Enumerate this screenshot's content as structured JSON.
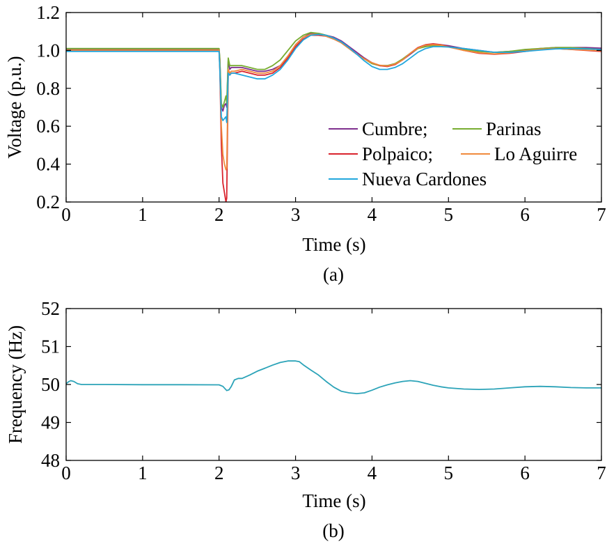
{
  "chart_data": [
    {
      "type": "line",
      "caption": "(a)",
      "xlabel": "Time (s)",
      "ylabel": "Voltage (p.u.)",
      "xlim": [
        0,
        7
      ],
      "ylim": [
        0.2,
        1.2
      ],
      "xticks": [
        "0",
        "1",
        "2",
        "3",
        "4",
        "5",
        "6",
        "7"
      ],
      "yticks": [
        "0.2",
        "0.4",
        "0.6",
        "0.8",
        "1.0",
        "1.2"
      ],
      "grid": false,
      "legend_position": "lower-right",
      "legend": [
        {
          "label": "Cumbre;",
          "color": "#7e2f8e"
        },
        {
          "label": "Parinas",
          "color": "#77ac30"
        },
        {
          "label": "Polpaico;",
          "color": "#d9232d"
        },
        {
          "label": "Lo Aguirre",
          "color": "#f08a3c"
        },
        {
          "label": "Nueva Cardones",
          "color": "#22a7dd"
        }
      ],
      "series": [
        {
          "name": "Cumbre",
          "color": "#7e2f8e",
          "x": [
            0,
            2.0,
            2.01,
            2.03,
            2.05,
            2.07,
            2.09,
            2.1,
            2.12,
            2.14,
            2.16,
            2.2,
            2.3,
            2.4,
            2.5,
            2.6,
            2.7,
            2.8,
            2.9,
            3.0,
            3.1,
            3.2,
            3.3,
            3.4,
            3.5,
            3.6,
            3.7,
            3.8,
            3.9,
            4.0,
            4.1,
            4.2,
            4.3,
            4.4,
            4.5,
            4.6,
            4.7,
            4.8,
            4.9,
            5.0,
            5.2,
            5.4,
            5.6,
            5.8,
            6.0,
            6.2,
            6.4,
            6.6,
            6.8,
            7.0
          ],
          "y": [
            1.008,
            1.008,
            0.95,
            0.7,
            0.68,
            0.71,
            0.72,
            0.7,
            0.95,
            0.9,
            0.91,
            0.91,
            0.91,
            0.9,
            0.89,
            0.89,
            0.9,
            0.92,
            0.97,
            1.03,
            1.07,
            1.09,
            1.09,
            1.08,
            1.07,
            1.05,
            1.02,
            0.99,
            0.96,
            0.935,
            0.92,
            0.92,
            0.93,
            0.95,
            0.98,
            1.01,
            1.025,
            1.03,
            1.03,
            1.025,
            1.01,
            1.0,
            0.99,
            0.995,
            1.0,
            1.01,
            1.015,
            1.015,
            1.015,
            1.012
          ]
        },
        {
          "name": "Parinas",
          "color": "#77ac30",
          "x": [
            0,
            2.0,
            2.01,
            2.03,
            2.05,
            2.07,
            2.09,
            2.1,
            2.12,
            2.14,
            2.16,
            2.2,
            2.3,
            2.4,
            2.5,
            2.6,
            2.7,
            2.8,
            2.9,
            3.0,
            3.1,
            3.2,
            3.3,
            3.4,
            3.5,
            3.6,
            3.7,
            3.8,
            3.9,
            4.0,
            4.1,
            4.2,
            4.3,
            4.4,
            4.5,
            4.6,
            4.7,
            4.8,
            4.9,
            5.0,
            5.2,
            5.4,
            5.6,
            5.8,
            6.0,
            6.2,
            6.4,
            6.6,
            6.8,
            7.0
          ],
          "y": [
            1.01,
            1.01,
            0.96,
            0.72,
            0.7,
            0.73,
            0.76,
            0.72,
            0.96,
            0.92,
            0.92,
            0.92,
            0.92,
            0.91,
            0.9,
            0.9,
            0.92,
            0.95,
            1.0,
            1.05,
            1.08,
            1.095,
            1.09,
            1.08,
            1.065,
            1.04,
            1.01,
            0.98,
            0.955,
            0.93,
            0.92,
            0.92,
            0.93,
            0.955,
            0.985,
            1.01,
            1.02,
            1.025,
            1.025,
            1.02,
            1.005,
            0.995,
            0.99,
            0.995,
            1.005,
            1.01,
            1.015,
            1.015,
            1.01,
            1.005
          ]
        },
        {
          "name": "Polpaico",
          "color": "#d9232d",
          "x": [
            0,
            2.0,
            2.01,
            2.03,
            2.05,
            2.07,
            2.09,
            2.1,
            2.12,
            2.14,
            2.16,
            2.2,
            2.3,
            2.4,
            2.5,
            2.6,
            2.7,
            2.8,
            2.9,
            3.0,
            3.1,
            3.2,
            3.3,
            3.4,
            3.5,
            3.6,
            3.7,
            3.8,
            3.9,
            4.0,
            4.1,
            4.2,
            4.3,
            4.4,
            4.5,
            4.6,
            4.7,
            4.8,
            4.9,
            5.0,
            5.2,
            5.4,
            5.6,
            5.8,
            6.0,
            6.2,
            6.4,
            6.6,
            6.8,
            7.0
          ],
          "y": [
            1.0,
            1.0,
            0.9,
            0.5,
            0.3,
            0.25,
            0.2,
            0.22,
            0.88,
            0.87,
            0.88,
            0.88,
            0.89,
            0.88,
            0.87,
            0.87,
            0.88,
            0.91,
            0.96,
            1.02,
            1.06,
            1.08,
            1.08,
            1.075,
            1.06,
            1.04,
            1.01,
            0.98,
            0.955,
            0.935,
            0.92,
            0.915,
            0.925,
            0.95,
            0.985,
            1.015,
            1.03,
            1.035,
            1.03,
            1.02,
            1.0,
            0.985,
            0.98,
            0.985,
            0.995,
            1.005,
            1.01,
            1.005,
            1.0,
            0.995
          ]
        },
        {
          "name": "Lo Aguirre",
          "color": "#f08a3c",
          "x": [
            0,
            2.0,
            2.01,
            2.03,
            2.05,
            2.07,
            2.09,
            2.1,
            2.12,
            2.14,
            2.16,
            2.2,
            2.3,
            2.4,
            2.5,
            2.6,
            2.7,
            2.8,
            2.9,
            3.0,
            3.1,
            3.2,
            3.3,
            3.4,
            3.5,
            3.6,
            3.7,
            3.8,
            3.9,
            4.0,
            4.1,
            4.2,
            4.3,
            4.4,
            4.5,
            4.6,
            4.7,
            4.8,
            4.9,
            5.0,
            5.2,
            5.4,
            5.6,
            5.8,
            6.0,
            6.2,
            6.4,
            6.6,
            6.8,
            7.0
          ],
          "y": [
            1.002,
            1.002,
            0.92,
            0.6,
            0.45,
            0.4,
            0.37,
            0.38,
            0.9,
            0.88,
            0.89,
            0.89,
            0.9,
            0.89,
            0.88,
            0.88,
            0.89,
            0.92,
            0.97,
            1.03,
            1.07,
            1.085,
            1.085,
            1.075,
            1.06,
            1.04,
            1.01,
            0.98,
            0.955,
            0.935,
            0.922,
            0.918,
            0.928,
            0.95,
            0.985,
            1.012,
            1.028,
            1.03,
            1.028,
            1.018,
            1.0,
            0.988,
            0.982,
            0.988,
            0.998,
            1.006,
            1.01,
            1.006,
            1.002,
            0.998
          ]
        },
        {
          "name": "Nueva Cardones",
          "color": "#22a7dd",
          "x": [
            0,
            2.0,
            2.01,
            2.03,
            2.05,
            2.07,
            2.09,
            2.1,
            2.12,
            2.14,
            2.16,
            2.2,
            2.3,
            2.4,
            2.5,
            2.6,
            2.7,
            2.8,
            2.9,
            3.0,
            3.1,
            3.2,
            3.3,
            3.4,
            3.5,
            3.6,
            3.7,
            3.8,
            3.9,
            4.0,
            4.1,
            4.2,
            4.3,
            4.4,
            4.5,
            4.6,
            4.7,
            4.8,
            4.9,
            5.0,
            5.2,
            5.4,
            5.6,
            5.8,
            6.0,
            6.2,
            6.4,
            6.6,
            6.8,
            7.0
          ],
          "y": [
            0.995,
            0.995,
            0.9,
            0.65,
            0.63,
            0.64,
            0.65,
            0.62,
            0.88,
            0.87,
            0.88,
            0.88,
            0.87,
            0.86,
            0.85,
            0.85,
            0.87,
            0.9,
            0.95,
            1.01,
            1.055,
            1.08,
            1.085,
            1.08,
            1.065,
            1.045,
            1.015,
            0.98,
            0.945,
            0.915,
            0.9,
            0.9,
            0.91,
            0.93,
            0.96,
            0.99,
            1.01,
            1.02,
            1.02,
            1.018,
            1.01,
            1.0,
            0.99,
            0.99,
            0.995,
            1.002,
            1.008,
            1.01,
            1.008,
            1.005
          ]
        }
      ]
    },
    {
      "type": "line",
      "caption": "(b)",
      "xlabel": "Time (s)",
      "ylabel": "Frequency (Hz)",
      "xlim": [
        0,
        7
      ],
      "ylim": [
        48,
        52
      ],
      "xticks": [
        "0",
        "1",
        "2",
        "3",
        "4",
        "5",
        "6",
        "7"
      ],
      "yticks": [
        "48",
        "49",
        "50",
        "51",
        "52"
      ],
      "grid": false,
      "series": [
        {
          "color": "#2ba3b8",
          "x": [
            0,
            0.03,
            0.06,
            0.1,
            0.15,
            0.2,
            0.3,
            0.5,
            1.0,
            1.5,
            2.0,
            2.05,
            2.1,
            2.13,
            2.16,
            2.2,
            2.25,
            2.3,
            2.4,
            2.5,
            2.6,
            2.7,
            2.8,
            2.9,
            3.0,
            3.05,
            3.1,
            3.2,
            3.3,
            3.4,
            3.5,
            3.6,
            3.7,
            3.8,
            3.9,
            4.0,
            4.1,
            4.2,
            4.3,
            4.4,
            4.5,
            4.6,
            4.7,
            4.8,
            4.9,
            5.0,
            5.2,
            5.4,
            5.6,
            5.8,
            6.0,
            6.2,
            6.4,
            6.6,
            6.8,
            7.0
          ],
          "y": [
            50.02,
            50.07,
            50.1,
            50.08,
            50.02,
            50.0,
            50.0,
            50.0,
            49.995,
            49.995,
            49.99,
            49.95,
            49.84,
            49.86,
            49.95,
            50.12,
            50.16,
            50.16,
            50.25,
            50.35,
            50.43,
            50.51,
            50.58,
            50.62,
            50.62,
            50.6,
            50.52,
            50.38,
            50.25,
            50.08,
            49.93,
            49.82,
            49.78,
            49.76,
            49.78,
            49.85,
            49.93,
            49.99,
            50.04,
            50.08,
            50.1,
            50.08,
            50.03,
            49.98,
            49.94,
            49.91,
            49.88,
            49.87,
            49.88,
            49.91,
            49.94,
            49.95,
            49.94,
            49.92,
            49.91,
            49.91
          ]
        }
      ]
    }
  ]
}
